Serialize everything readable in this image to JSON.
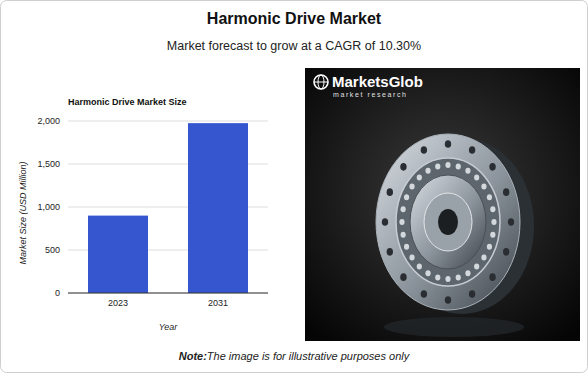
{
  "header": {
    "title": "Harmonic Drive Market",
    "subtitle": "Market forecast to grow at a CAGR of 10.30%"
  },
  "chart_data": {
    "type": "bar",
    "title": "Harmonic Drive Market Size",
    "x_label": "Year",
    "y_label": "Market Size (USD Million)",
    "categories": [
      "2023",
      "2031"
    ],
    "values": [
      900,
      1975
    ],
    "color": "#3656cf",
    "ylim": [
      0,
      2000
    ],
    "yticks": [
      0,
      500,
      {
        "value": 1000,
        "label": "1,000"
      },
      {
        "value": 1500,
        "label": "1,500"
      },
      {
        "value": 2000,
        "label": "2,000"
      }
    ],
    "grid": true
  },
  "logo": {
    "name": "MarketsGlob",
    "tagline": "market research"
  },
  "note": {
    "label": "Note:",
    "text": "The image is for illustrative purposes only"
  }
}
